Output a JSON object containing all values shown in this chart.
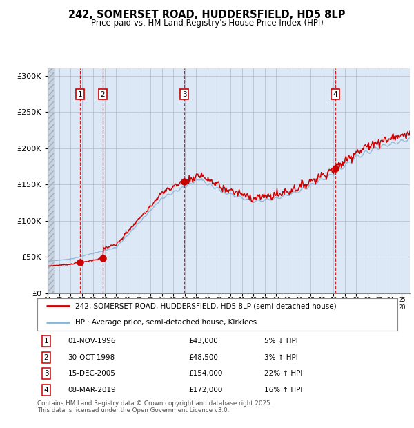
{
  "title": "242, SOMERSET ROAD, HUDDERSFIELD, HD5 8LP",
  "subtitle": "Price paid vs. HM Land Registry's House Price Index (HPI)",
  "legend_line1": "242, SOMERSET ROAD, HUDDERSFIELD, HD5 8LP (semi-detached house)",
  "legend_line2": "HPI: Average price, semi-detached house, Kirklees",
  "footer": "Contains HM Land Registry data © Crown copyright and database right 2025.\nThis data is licensed under the Open Government Licence v3.0.",
  "transactions": [
    {
      "num": 1,
      "date": "01-NOV-1996",
      "price": 43000,
      "pct": "5%",
      "dir": "↓",
      "year": 1996.83
    },
    {
      "num": 2,
      "date": "30-OCT-1998",
      "price": 48500,
      "pct": "3%",
      "dir": "↑",
      "year": 1998.83
    },
    {
      "num": 3,
      "date": "15-DEC-2005",
      "price": 154000,
      "pct": "22%",
      "dir": "↑",
      "year": 2005.96
    },
    {
      "num": 4,
      "date": "08-MAR-2019",
      "price": 172000,
      "pct": "16%",
      "dir": "↑",
      "year": 2019.19
    }
  ],
  "hpi_color": "#8ab4d4",
  "price_color": "#cc0000",
  "dot_color": "#cc0000",
  "vline_color": "#cc0000",
  "bg_color": "#dce8f5",
  "hatch_bg": "#c8d4e0",
  "grid_color": "#b0b8c8",
  "ylim": [
    0,
    310000
  ],
  "xlim_start": 1994.0,
  "xlim_end": 2025.7
}
